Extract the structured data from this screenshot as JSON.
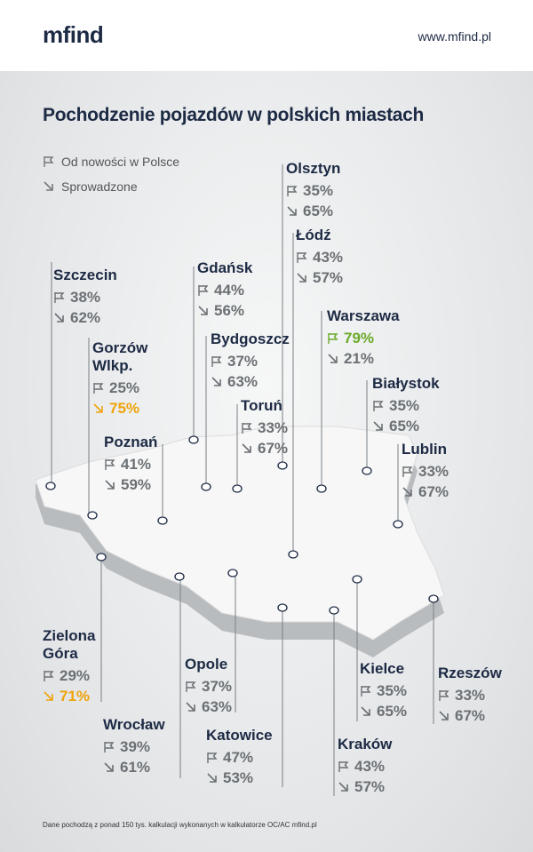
{
  "header": {
    "logo": "mfind",
    "url": "www.mfind.pl"
  },
  "title": "Pochodzenie pojazdów w polskich miastach",
  "legend": {
    "new": "Od nowości w Polsce",
    "imported": "Sprowadzone"
  },
  "cities": [
    {
      "name": "Olsztyn",
      "new": "35%",
      "imported": "65%"
    },
    {
      "name": "Łódź",
      "new": "43%",
      "imported": "57%"
    },
    {
      "name": "Szczecin",
      "new": "38%",
      "imported": "62%"
    },
    {
      "name": "Gdańsk",
      "new": "44%",
      "imported": "56%"
    },
    {
      "name": "Warszawa",
      "new": "79%",
      "imported": "21%"
    },
    {
      "name": "Gorzów Wlkp.",
      "new": "25%",
      "imported": "75%"
    },
    {
      "name": "Bydgoszcz",
      "new": "37%",
      "imported": "63%"
    },
    {
      "name": "Białystok",
      "new": "35%",
      "imported": "65%"
    },
    {
      "name": "Toruń",
      "new": "33%",
      "imported": "67%"
    },
    {
      "name": "Poznań",
      "new": "41%",
      "imported": "59%"
    },
    {
      "name": "Lublin",
      "new": "33%",
      "imported": "67%"
    },
    {
      "name": "Zielona Góra",
      "new": "29%",
      "imported": "71%"
    },
    {
      "name": "Opole",
      "new": "37%",
      "imported": "63%"
    },
    {
      "name": "Wrocław",
      "new": "39%",
      "imported": "61%"
    },
    {
      "name": "Katowice",
      "new": "47%",
      "imported": "53%"
    },
    {
      "name": "Kielce",
      "new": "35%",
      "imported": "65%"
    },
    {
      "name": "Rzeszów",
      "new": "33%",
      "imported": "67%"
    },
    {
      "name": "Kraków",
      "new": "43%",
      "imported": "57%"
    }
  ],
  "footnote": "Dane pochodzą z ponad 150 tys. kalkulacji wykonanych w kalkulatorze OC/AC mfind.pl"
}
